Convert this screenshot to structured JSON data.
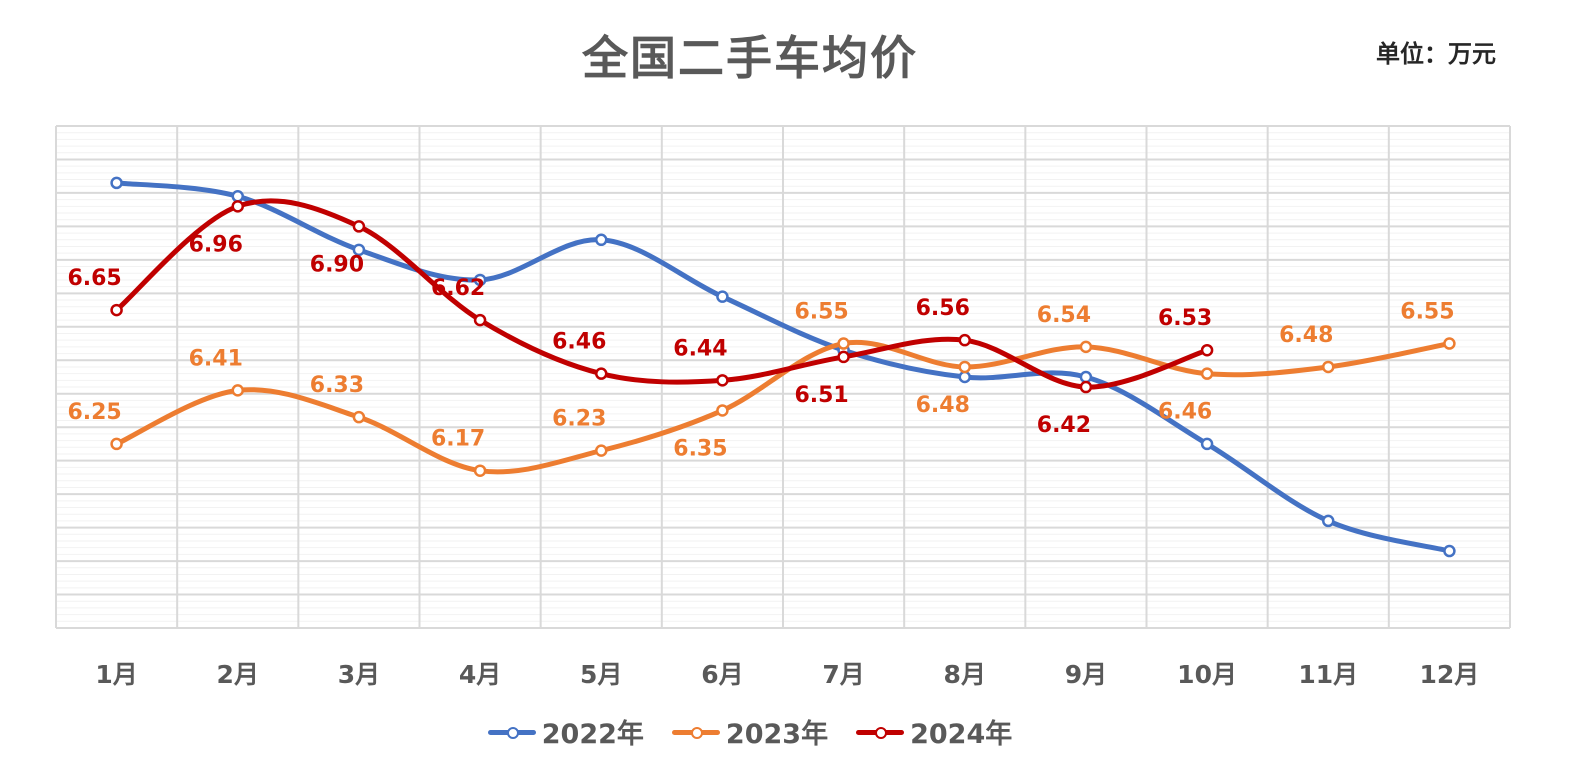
{
  "title": "全国二手车均价",
  "unit": "单位：万元",
  "chart_data": {
    "type": "line",
    "smooth": true,
    "grid": true,
    "legend_position": "bottom",
    "categories": [
      "1月",
      "2月",
      "3月",
      "4月",
      "5月",
      "6月",
      "7月",
      "8月",
      "9月",
      "10月",
      "11月",
      "12月"
    ],
    "ylim": [
      5.7,
      7.2
    ],
    "series": [
      {
        "name": "2022年",
        "color": "#4472c4",
        "values": [
          7.03,
          6.99,
          6.83,
          6.74,
          6.86,
          6.69,
          6.53,
          6.45,
          6.45,
          6.25,
          6.02,
          5.93
        ],
        "labels": [
          "",
          "",
          "",
          "",
          "",
          "",
          "",
          "",
          "",
          "",
          "",
          ""
        ]
      },
      {
        "name": "2023年",
        "color": "#ed7d31",
        "values": [
          6.25,
          6.41,
          6.33,
          6.17,
          6.23,
          6.35,
          6.55,
          6.48,
          6.54,
          6.46,
          6.48,
          6.55
        ],
        "labels": [
          "6.25",
          "6.41",
          "6.33",
          "6.17",
          "6.23",
          "6.35",
          "6.55",
          "6.48",
          "6.54",
          "6.46",
          "6.48",
          "6.55"
        ],
        "label_pos": [
          "above",
          "above",
          "above",
          "above",
          "above",
          "below",
          "above",
          "below",
          "above",
          "below",
          "above",
          "above"
        ]
      },
      {
        "name": "2024年",
        "color": "#c00000",
        "values": [
          6.65,
          6.96,
          6.9,
          6.62,
          6.46,
          6.44,
          6.51,
          6.56,
          6.42,
          6.53,
          null,
          null
        ],
        "labels": [
          "6.65",
          "6.96",
          "6.90",
          "6.62",
          "6.46",
          "6.44",
          "6.51",
          "6.56",
          "6.42",
          "6.53",
          "",
          ""
        ],
        "label_pos": [
          "above",
          "below",
          "below",
          "above",
          "above",
          "above",
          "below",
          "above",
          "below",
          "above",
          "",
          ""
        ]
      }
    ]
  }
}
